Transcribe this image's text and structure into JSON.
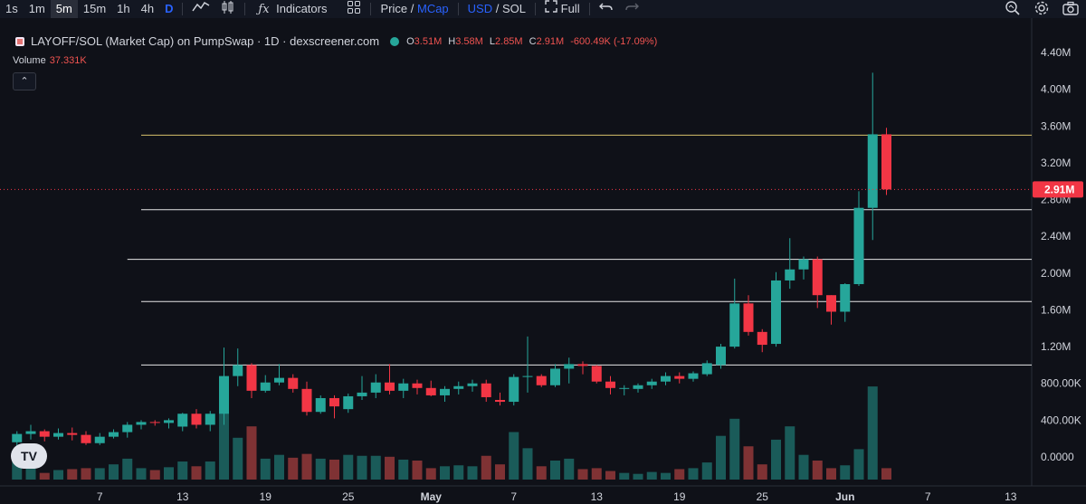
{
  "toolbar": {
    "intervals": [
      "1s",
      "1m",
      "5m",
      "15m",
      "1h",
      "4h",
      "D"
    ],
    "active_interval": "5m",
    "indicators_label": "Indicators",
    "price_label": "Price",
    "slash": "/",
    "mcap_label": "MCap",
    "usd_label": "USD",
    "sol_label": "SOL",
    "full_label": "Full"
  },
  "legend": {
    "title": "LAYOFF/SOL (Market Cap) on PumpSwap · 1D · dexscreener.com",
    "o_label": "O",
    "o_value": "3.51M",
    "h_label": "H",
    "h_value": "3.58M",
    "l_label": "L",
    "l_value": "2.85M",
    "c_label": "C",
    "c_value": "2.91M",
    "change": "-600.49K (-17.09%)"
  },
  "volume_legend": {
    "label": "Volume",
    "value": "37.331K"
  },
  "colors": {
    "up": "#26a69a",
    "down": "#f23645",
    "background": "#0f1118"
  },
  "chart_data": {
    "type": "candlestick",
    "price_axis_labels": [
      "4.40M",
      "4.00M",
      "3.60M",
      "3.20M",
      "2.80M",
      "2.40M",
      "2.00M",
      "1.60M",
      "1.20M",
      "800.00K",
      "400.00K",
      "0.0000"
    ],
    "price_range": [
      0,
      4400000
    ],
    "last_price_label": "2.91M",
    "last_price": 2910000,
    "x_axis_labels": [
      {
        "label": "7",
        "day": 7
      },
      {
        "label": "13",
        "day": 13
      },
      {
        "label": "19",
        "day": 19
      },
      {
        "label": "25",
        "day": 25
      },
      {
        "label": "May",
        "day": 31
      },
      {
        "label": "7",
        "day": 37
      },
      {
        "label": "13",
        "day": 43
      },
      {
        "label": "19",
        "day": 49
      },
      {
        "label": "25",
        "day": 55
      },
      {
        "label": "Jun",
        "day": 61
      },
      {
        "label": "7",
        "day": 67
      },
      {
        "label": "13",
        "day": 73
      }
    ],
    "horizontal_lines": [
      {
        "price": 3500000,
        "from_day": 10,
        "color": "#d6c16a"
      },
      {
        "price": 2690000,
        "from_day": 10,
        "color": "#e6e6e6"
      },
      {
        "price": 2150000,
        "from_day": 9,
        "color": "#e6e6e6"
      },
      {
        "price": 1690000,
        "from_day": 10,
        "color": "#e6e6e6"
      },
      {
        "price": 1000000,
        "from_day": 10,
        "color": "#e6e6e6"
      }
    ],
    "candles": [
      {
        "day": 1,
        "o": 160000,
        "h": 280000,
        "l": 100000,
        "c": 250000,
        "v": 300000
      },
      {
        "day": 2,
        "o": 250000,
        "h": 350000,
        "l": 190000,
        "c": 280000,
        "v": 240000
      },
      {
        "day": 3,
        "o": 280000,
        "h": 300000,
        "l": 170000,
        "c": 220000,
        "v": 70000
      },
      {
        "day": 4,
        "o": 220000,
        "h": 310000,
        "l": 190000,
        "c": 260000,
        "v": 100000
      },
      {
        "day": 5,
        "o": 260000,
        "h": 320000,
        "l": 180000,
        "c": 240000,
        "v": 110000
      },
      {
        "day": 6,
        "o": 240000,
        "h": 280000,
        "l": 130000,
        "c": 150000,
        "v": 120000
      },
      {
        "day": 7,
        "o": 150000,
        "h": 260000,
        "l": 130000,
        "c": 220000,
        "v": 120000
      },
      {
        "day": 8,
        "o": 220000,
        "h": 300000,
        "l": 200000,
        "c": 270000,
        "v": 160000
      },
      {
        "day": 9,
        "o": 270000,
        "h": 380000,
        "l": 210000,
        "c": 350000,
        "v": 220000
      },
      {
        "day": 10,
        "o": 350000,
        "h": 400000,
        "l": 300000,
        "c": 380000,
        "v": 120000
      },
      {
        "day": 11,
        "o": 380000,
        "h": 400000,
        "l": 340000,
        "c": 370000,
        "v": 100000
      },
      {
        "day": 12,
        "o": 370000,
        "h": 420000,
        "l": 310000,
        "c": 400000,
        "v": 130000
      },
      {
        "day": 13,
        "o": 330000,
        "h": 480000,
        "l": 280000,
        "c": 470000,
        "v": 190000
      },
      {
        "day": 14,
        "o": 470000,
        "h": 520000,
        "l": 310000,
        "c": 350000,
        "v": 140000
      },
      {
        "day": 15,
        "o": 350000,
        "h": 500000,
        "l": 280000,
        "c": 470000,
        "v": 190000
      },
      {
        "day": 16,
        "o": 470000,
        "h": 1190000,
        "l": 350000,
        "c": 880000,
        "v": 950000
      },
      {
        "day": 17,
        "o": 880000,
        "h": 1180000,
        "l": 770000,
        "c": 1000000,
        "v": 440000
      },
      {
        "day": 18,
        "o": 1000000,
        "h": 1020000,
        "l": 640000,
        "c": 720000,
        "v": 560000
      },
      {
        "day": 19,
        "o": 720000,
        "h": 890000,
        "l": 700000,
        "c": 810000,
        "v": 220000
      },
      {
        "day": 20,
        "o": 810000,
        "h": 1010000,
        "l": 780000,
        "c": 860000,
        "v": 260000
      },
      {
        "day": 21,
        "o": 860000,
        "h": 900000,
        "l": 700000,
        "c": 740000,
        "v": 230000
      },
      {
        "day": 22,
        "o": 740000,
        "h": 820000,
        "l": 450000,
        "c": 490000,
        "v": 270000
      },
      {
        "day": 23,
        "o": 490000,
        "h": 670000,
        "l": 470000,
        "c": 640000,
        "v": 220000
      },
      {
        "day": 24,
        "o": 640000,
        "h": 670000,
        "l": 420000,
        "c": 550000,
        "v": 210000
      },
      {
        "day": 25,
        "o": 520000,
        "h": 690000,
        "l": 480000,
        "c": 660000,
        "v": 260000
      },
      {
        "day": 26,
        "o": 660000,
        "h": 880000,
        "l": 620000,
        "c": 700000,
        "v": 250000
      },
      {
        "day": 27,
        "o": 700000,
        "h": 900000,
        "l": 640000,
        "c": 810000,
        "v": 250000
      },
      {
        "day": 28,
        "o": 810000,
        "h": 1010000,
        "l": 680000,
        "c": 720000,
        "v": 240000
      },
      {
        "day": 29,
        "o": 720000,
        "h": 850000,
        "l": 640000,
        "c": 800000,
        "v": 210000
      },
      {
        "day": 30,
        "o": 800000,
        "h": 840000,
        "l": 680000,
        "c": 750000,
        "v": 200000
      },
      {
        "day": 31,
        "o": 750000,
        "h": 830000,
        "l": 660000,
        "c": 670000,
        "v": 120000
      },
      {
        "day": 32,
        "o": 670000,
        "h": 770000,
        "l": 600000,
        "c": 740000,
        "v": 140000
      },
      {
        "day": 33,
        "o": 740000,
        "h": 820000,
        "l": 680000,
        "c": 770000,
        "v": 150000
      },
      {
        "day": 34,
        "o": 770000,
        "h": 840000,
        "l": 710000,
        "c": 800000,
        "v": 140000
      },
      {
        "day": 35,
        "o": 800000,
        "h": 840000,
        "l": 600000,
        "c": 650000,
        "v": 250000
      },
      {
        "day": 36,
        "o": 620000,
        "h": 700000,
        "l": 560000,
        "c": 600000,
        "v": 160000
      },
      {
        "day": 37,
        "o": 600000,
        "h": 900000,
        "l": 560000,
        "c": 870000,
        "v": 500000
      },
      {
        "day": 38,
        "o": 870000,
        "h": 1310000,
        "l": 700000,
        "c": 880000,
        "v": 330000
      },
      {
        "day": 39,
        "o": 880000,
        "h": 900000,
        "l": 760000,
        "c": 780000,
        "v": 140000
      },
      {
        "day": 40,
        "o": 780000,
        "h": 1010000,
        "l": 760000,
        "c": 960000,
        "v": 200000
      },
      {
        "day": 41,
        "o": 960000,
        "h": 1080000,
        "l": 800000,
        "c": 1010000,
        "v": 220000
      },
      {
        "day": 42,
        "o": 1010000,
        "h": 1040000,
        "l": 900000,
        "c": 990000,
        "v": 110000
      },
      {
        "day": 43,
        "o": 990000,
        "h": 1000000,
        "l": 800000,
        "c": 820000,
        "v": 120000
      },
      {
        "day": 44,
        "o": 820000,
        "h": 880000,
        "l": 680000,
        "c": 750000,
        "v": 90000
      },
      {
        "day": 45,
        "o": 750000,
        "h": 780000,
        "l": 670000,
        "c": 750000,
        "v": 70000
      },
      {
        "day": 46,
        "o": 740000,
        "h": 800000,
        "l": 700000,
        "c": 780000,
        "v": 60000
      },
      {
        "day": 47,
        "o": 780000,
        "h": 850000,
        "l": 740000,
        "c": 820000,
        "v": 80000
      },
      {
        "day": 48,
        "o": 820000,
        "h": 920000,
        "l": 780000,
        "c": 880000,
        "v": 70000
      },
      {
        "day": 49,
        "o": 880000,
        "h": 920000,
        "l": 800000,
        "c": 850000,
        "v": 110000
      },
      {
        "day": 50,
        "o": 850000,
        "h": 930000,
        "l": 820000,
        "c": 910000,
        "v": 120000
      },
      {
        "day": 51,
        "o": 900000,
        "h": 1050000,
        "l": 880000,
        "c": 1020000,
        "v": 180000
      },
      {
        "day": 52,
        "o": 1000000,
        "h": 1230000,
        "l": 960000,
        "c": 1200000,
        "v": 460000
      },
      {
        "day": 53,
        "o": 1200000,
        "h": 1940000,
        "l": 1180000,
        "c": 1670000,
        "v": 640000
      },
      {
        "day": 54,
        "o": 1670000,
        "h": 1760000,
        "l": 1320000,
        "c": 1360000,
        "v": 350000
      },
      {
        "day": 55,
        "o": 1360000,
        "h": 1390000,
        "l": 1140000,
        "c": 1220000,
        "v": 160000
      },
      {
        "day": 56,
        "o": 1230000,
        "h": 2010000,
        "l": 1200000,
        "c": 1920000,
        "v": 420000
      },
      {
        "day": 57,
        "o": 1920000,
        "h": 2380000,
        "l": 1830000,
        "c": 2040000,
        "v": 560000
      },
      {
        "day": 58,
        "o": 2040000,
        "h": 2180000,
        "l": 1930000,
        "c": 2150000,
        "v": 260000
      },
      {
        "day": 59,
        "o": 2150000,
        "h": 2180000,
        "l": 1620000,
        "c": 1760000,
        "v": 200000
      },
      {
        "day": 60,
        "o": 1760000,
        "h": 1760000,
        "l": 1440000,
        "c": 1580000,
        "v": 120000
      },
      {
        "day": 61,
        "o": 1580000,
        "h": 1890000,
        "l": 1470000,
        "c": 1880000,
        "v": 150000
      },
      {
        "day": 62,
        "o": 1880000,
        "h": 2890000,
        "l": 1860000,
        "c": 2710000,
        "v": 320000
      },
      {
        "day": 63,
        "o": 2710000,
        "h": 4180000,
        "l": 2360000,
        "c": 3510000,
        "v": 980000
      },
      {
        "day": 64,
        "o": 3510000,
        "h": 3580000,
        "l": 2850000,
        "c": 2910000,
        "v": 120000
      }
    ],
    "volume_range": [
      0,
      1000000
    ],
    "grid": false,
    "legend_position": "top-left"
  }
}
